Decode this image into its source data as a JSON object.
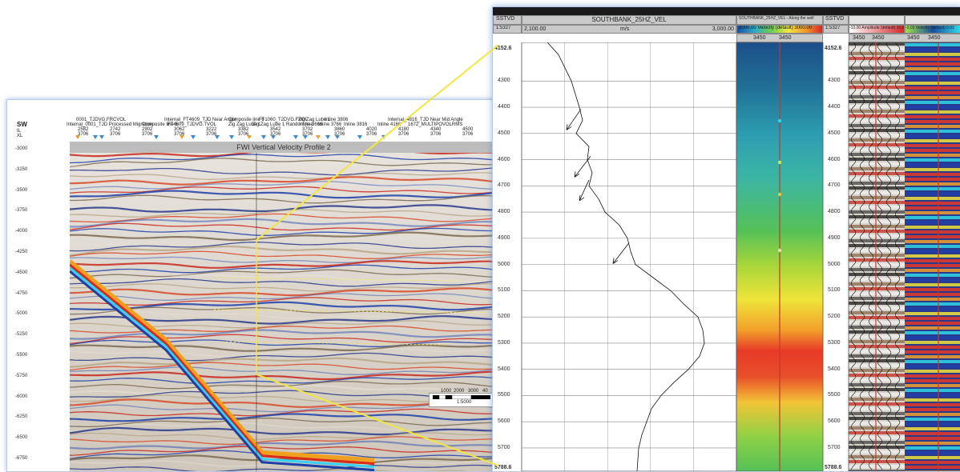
{
  "seismic": {
    "dir_label": "SW",
    "il_label": "IL",
    "xl_label": "XL",
    "title": "FWI Vertical Velocity Profile 2",
    "annotations_row1": [
      "0001_TJDVG.FRCVOL",
      "Internal_FT4609_TJD Near Angle",
      "Composite line 6",
      "FT1060_T2DVG.FVOL",
      "Zig Zag Lube 1",
      "Inline 3806",
      "Internal_4816_TJD Near Mid Angle"
    ],
    "annotations_row2": [
      "Internal_0001_TJD Processed Migration",
      "Composite line 6",
      "FT4609_TJDVG.TVOL",
      "Zig Zag Lube 1",
      "Zig Zag Lube 1 Random line",
      "Inline 3666",
      "Inline 3766",
      "Inline 3816",
      "Inline 4166",
      "1672_MULTIPOVOLRMS"
    ],
    "il_values": [
      "2582",
      "2742",
      "2902",
      "3062",
      "3222",
      "3382",
      "3542",
      "3702",
      "3860",
      "4020",
      "4180",
      "4340",
      "4500"
    ],
    "xl_values": [
      "3706",
      "3706",
      "3706",
      "3706",
      "3706",
      "3706",
      "3706",
      "3706",
      "3706",
      "3706",
      "3706",
      "3706",
      "3706"
    ],
    "depth_ticks": [
      "-3000",
      "-3250",
      "-3500",
      "-3750",
      "-4000",
      "-4250",
      "-4500",
      "-4750",
      "-5000",
      "-5250",
      "-5500",
      "-5750",
      "-6000",
      "-6250",
      "-6500",
      "-6750"
    ],
    "scalebar_ticks": [
      "1000",
      "2000",
      "3000",
      "40"
    ],
    "scalebar_caption": "1:5000"
  },
  "well": {
    "sstvd_label": "SSTVD",
    "sstvd_value": "1:5327",
    "vel_track_title": "SOUTHBANK_25HZ_VEL",
    "vel_min": "2,100.00",
    "vel_unit": "m/s",
    "vel_max": "3,000.00",
    "color_track_title": "SOUTHBANK_25HZ_VEL - Along the well",
    "color_track_scale": "2000.00 Velocity (default) 3000.00",
    "color_track_sub": [
      "3450",
      "3450"
    ],
    "sstvd2_label": "SSTVD",
    "sstvd2_value": "1:5327",
    "seis_track_scale_a": "-10.00 Amplitude (default) 10.00",
    "seis_track_scale_b": "-0.02 Velocity (default) 0.02",
    "seis_track_sub": [
      "3450",
      "3450",
      "3450",
      "3450"
    ],
    "depth_top": "4152.6",
    "depth_bottom": "5788.6",
    "depth_ticks": [
      "4300",
      "4400",
      "4500",
      "4600",
      "4700",
      "4800",
      "4900",
      "5000",
      "5100",
      "5200",
      "5300",
      "5400",
      "5500",
      "5600",
      "5700"
    ]
  },
  "colors": {
    "connector": "#f2e640",
    "well_line": "#c0392b",
    "frame_glow": "#9bb6e6"
  }
}
